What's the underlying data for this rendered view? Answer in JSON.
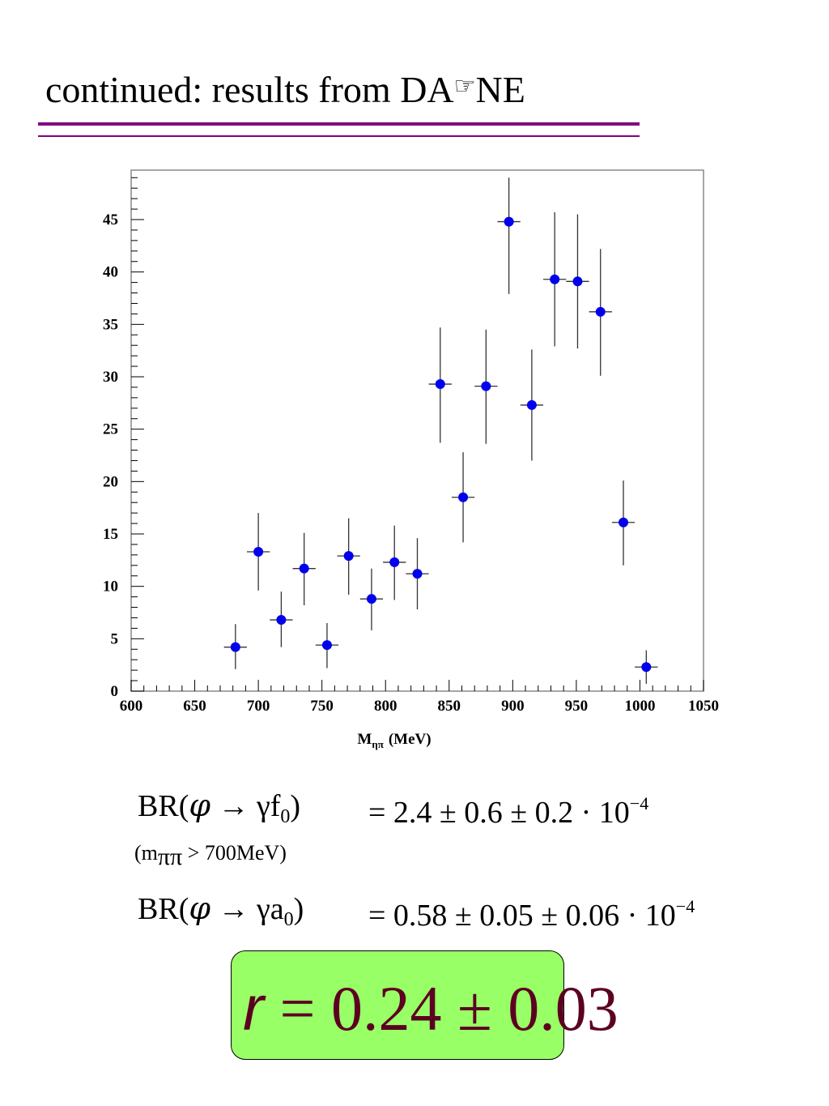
{
  "slide": {
    "title_before": "continued: results from DA",
    "title_glyph": "☞",
    "title_after": "NE"
  },
  "colors": {
    "rule": "#800080",
    "marker": "#0000ee",
    "box_fill": "#99ff66",
    "result_text": "#5c0022"
  },
  "chart_data": {
    "type": "scatter",
    "xlabel_main": "M",
    "xlabel_sub": "ηπ",
    "xlabel_unit": "(MeV)",
    "ylabel": "",
    "xlim": [
      600,
      1050
    ],
    "ylim": [
      0,
      49
    ],
    "xticks": [
      600,
      650,
      700,
      750,
      800,
      850,
      900,
      950,
      1000,
      1050
    ],
    "yticks": [
      0,
      5,
      10,
      15,
      20,
      25,
      30,
      35,
      40,
      45
    ],
    "grid": false,
    "x_half_width": 9,
    "points": [
      {
        "x": 682,
        "y": 4.2,
        "err_lo": 2.1,
        "err_hi": 6.4
      },
      {
        "x": 700,
        "y": 13.3,
        "err_lo": 9.6,
        "err_hi": 17.0
      },
      {
        "x": 718,
        "y": 6.8,
        "err_lo": 4.2,
        "err_hi": 9.5
      },
      {
        "x": 736,
        "y": 11.7,
        "err_lo": 8.2,
        "err_hi": 15.1
      },
      {
        "x": 754,
        "y": 4.4,
        "err_lo": 2.2,
        "err_hi": 6.5
      },
      {
        "x": 771,
        "y": 12.9,
        "err_lo": 9.2,
        "err_hi": 16.5
      },
      {
        "x": 789,
        "y": 8.8,
        "err_lo": 5.8,
        "err_hi": 11.7
      },
      {
        "x": 807,
        "y": 12.3,
        "err_lo": 8.7,
        "err_hi": 15.8
      },
      {
        "x": 825,
        "y": 11.2,
        "err_lo": 7.8,
        "err_hi": 14.6
      },
      {
        "x": 843,
        "y": 29.3,
        "err_lo": 23.7,
        "err_hi": 34.7
      },
      {
        "x": 861,
        "y": 18.5,
        "err_lo": 14.2,
        "err_hi": 22.8
      },
      {
        "x": 879,
        "y": 29.1,
        "err_lo": 23.6,
        "err_hi": 34.5
      },
      {
        "x": 897,
        "y": 44.8,
        "err_lo": 37.9,
        "err_hi": 49.0
      },
      {
        "x": 915,
        "y": 27.3,
        "err_lo": 22.0,
        "err_hi": 32.6
      },
      {
        "x": 933,
        "y": 39.3,
        "err_lo": 32.9,
        "err_hi": 45.7
      },
      {
        "x": 951,
        "y": 39.1,
        "err_lo": 32.7,
        "err_hi": 45.5
      },
      {
        "x": 969,
        "y": 36.2,
        "err_lo": 30.1,
        "err_hi": 42.2
      },
      {
        "x": 987,
        "y": 16.1,
        "err_lo": 12.0,
        "err_hi": 20.1
      },
      {
        "x": 1005,
        "y": 2.3,
        "err_lo": 0.7,
        "err_hi": 3.9
      }
    ]
  },
  "equations": {
    "br_f0_lhs_a": "BR(",
    "br_f0_lhs_phi": "φ",
    "br_f0_lhs_b": " → γf",
    "br_f0_lhs_sub": "0",
    "br_f0_lhs_c": ")",
    "br_f0_rhs": "=  2.4 ± 0.6 ± 0.2 · 10",
    "br_f0_exp": "−4",
    "cond_a": "(m",
    "cond_sub": "ππ",
    "cond_b": " > 700MeV)",
    "br_a0_lhs_a": "BR(",
    "br_a0_lhs_phi": "φ",
    "br_a0_lhs_b": " → γa",
    "br_a0_lhs_sub": "0",
    "br_a0_lhs_c": ")",
    "br_a0_rhs": "=  0.58 ± 0.05 ± 0.06 · 10",
    "br_a0_exp": "−4"
  },
  "result": {
    "var": "r",
    "value": " = 0.24 ± 0.03"
  }
}
